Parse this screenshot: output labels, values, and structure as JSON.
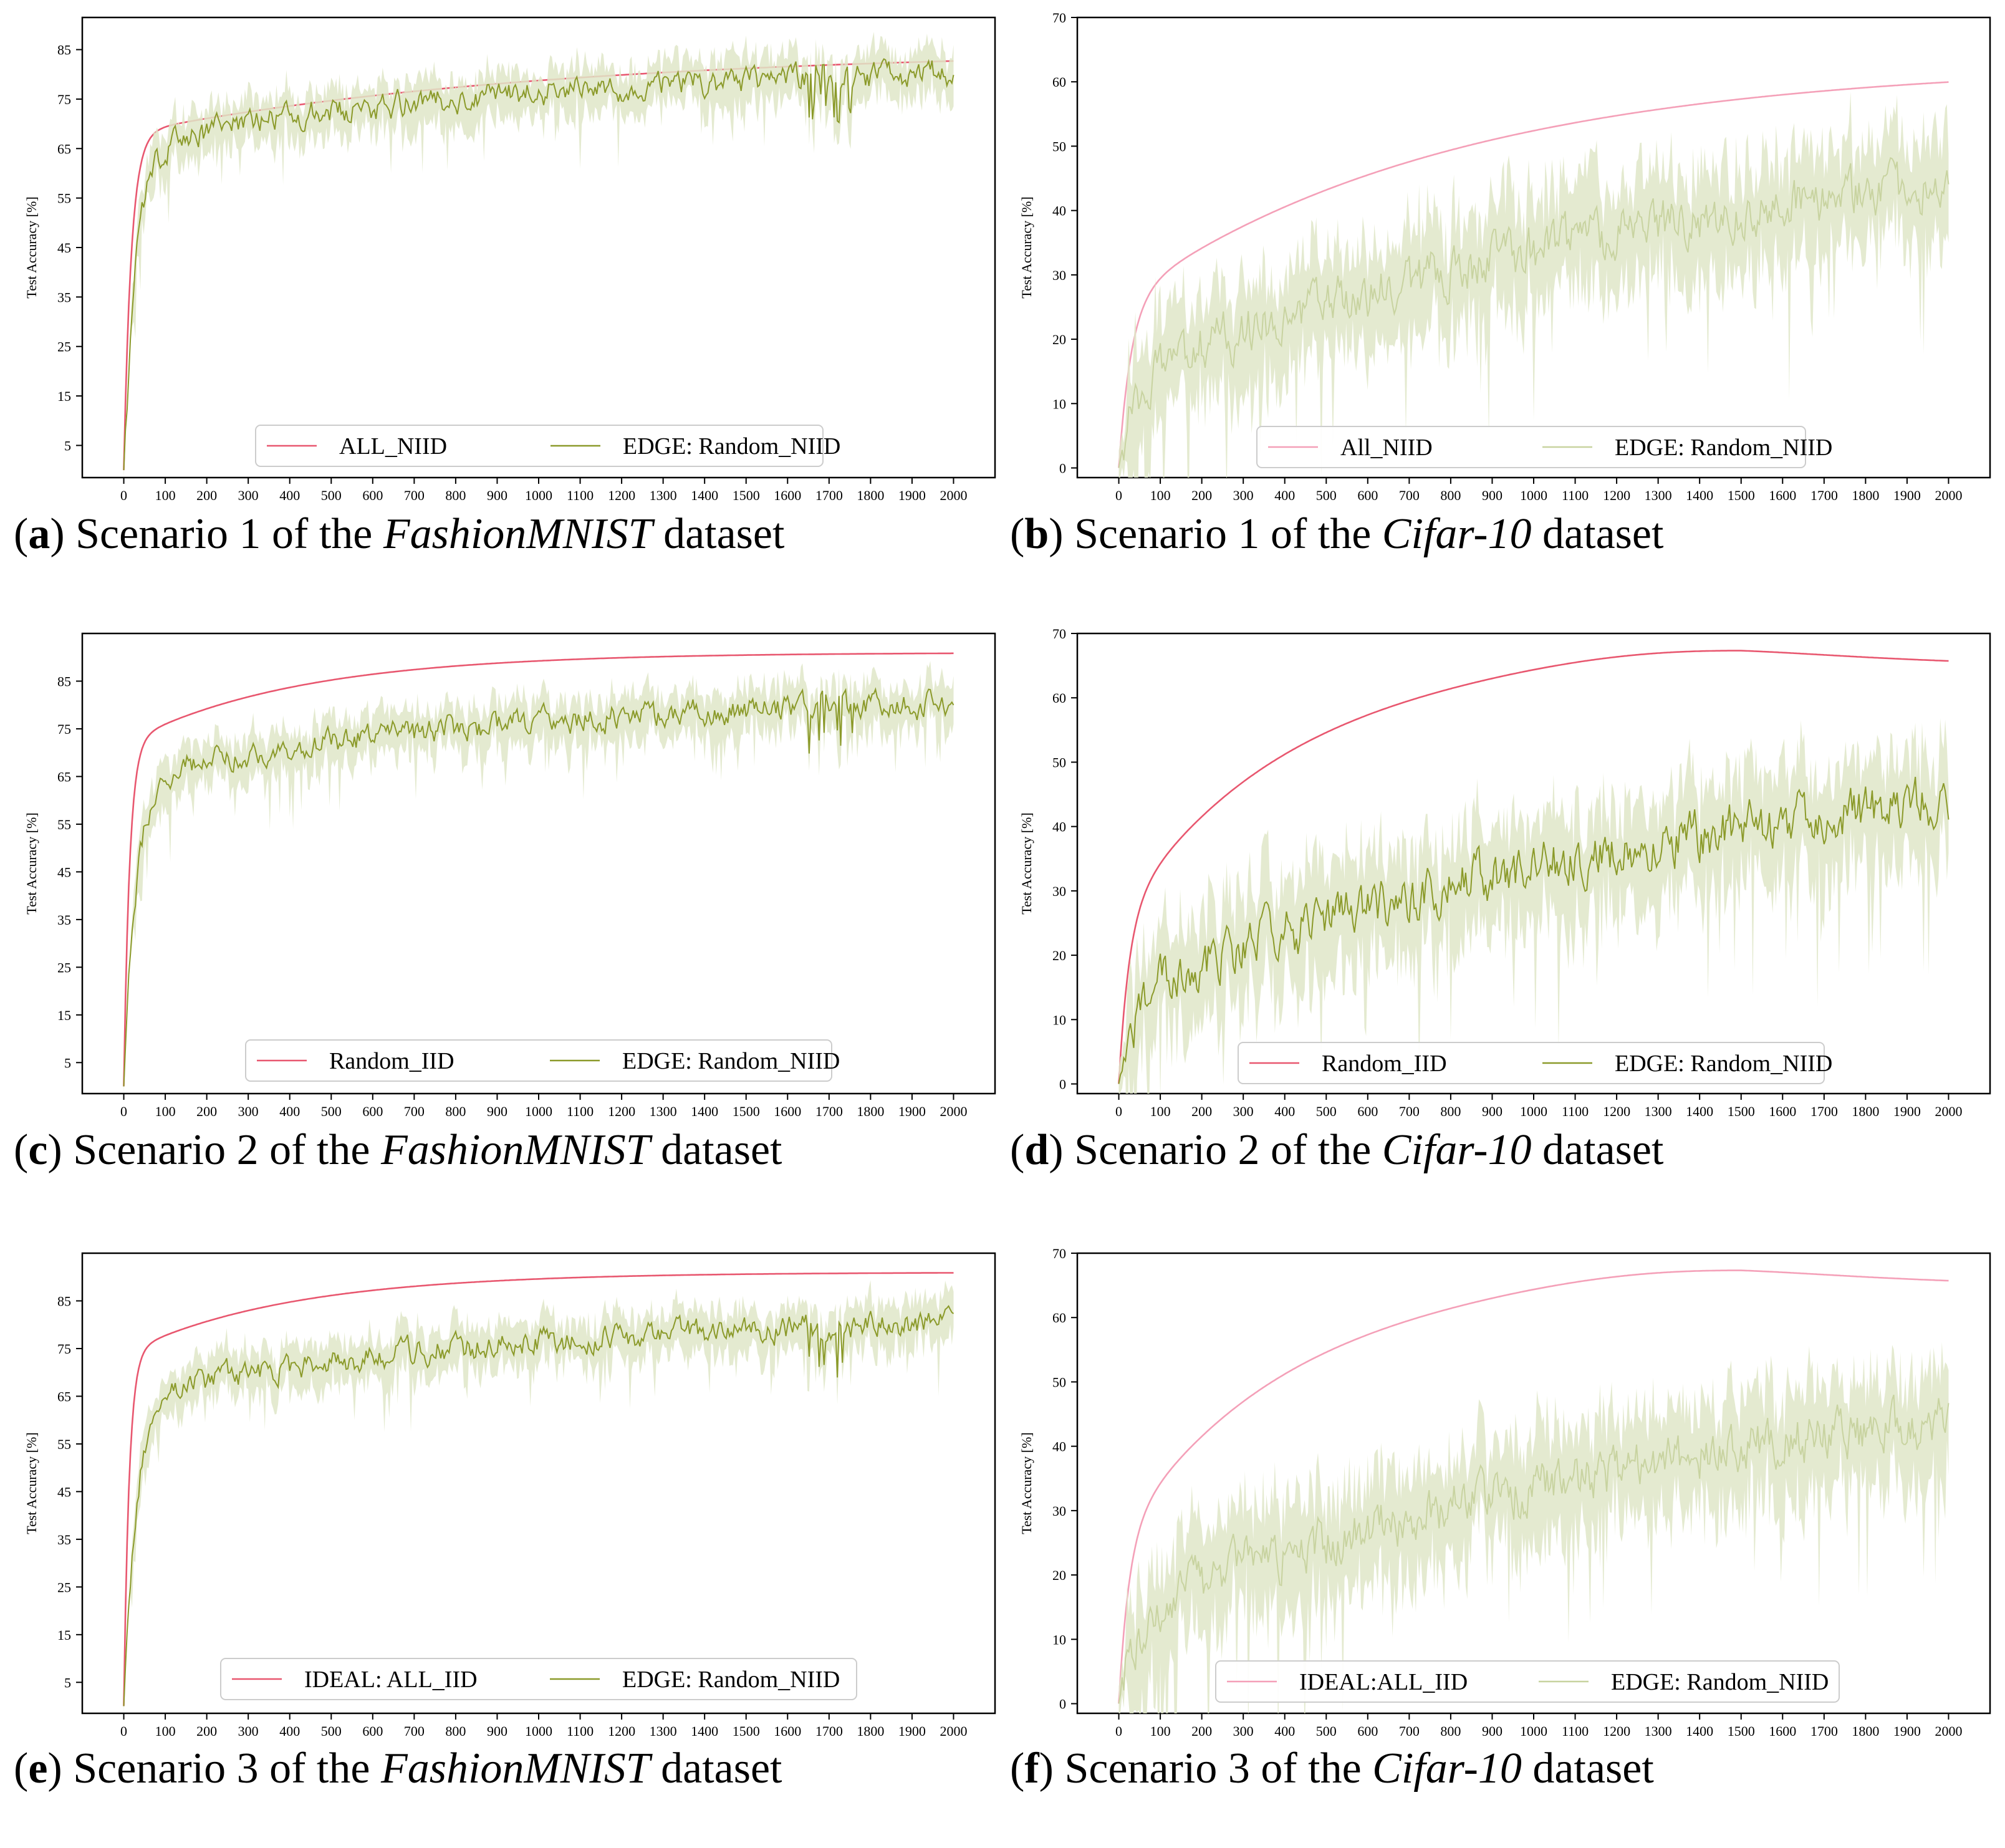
{
  "colors": {
    "pink": "#e8576f",
    "pink_light": "#f4a0b8",
    "olive": "#8b9a2a",
    "olive_band": "#dfe6c8"
  },
  "chart_data": [
    {
      "id": "a",
      "type": "line",
      "caption": {
        "letter": "a",
        "pre": " Scenario 1 of the ",
        "dataset": "FashionMNIST",
        "post": " dataset"
      },
      "ylabel": "Test Accuracy [%]",
      "xlim": [
        -100,
        2100
      ],
      "ylim": [
        -1.5,
        91.5
      ],
      "xticks": [
        0,
        100,
        200,
        300,
        400,
        500,
        600,
        700,
        800,
        900,
        1000,
        1100,
        1200,
        1300,
        1400,
        1500,
        1600,
        1700,
        1800,
        1900,
        2000
      ],
      "yticks": [
        5,
        15,
        25,
        35,
        45,
        55,
        65,
        75,
        85
      ],
      "ytick_labels": [
        "5",
        "15",
        "25",
        "35",
        "45",
        "55",
        "65",
        "75",
        "85"
      ],
      "series": [
        {
          "name": "ALL_NIID",
          "kind": "smooth",
          "color": "#e8576f",
          "start": 0,
          "end": 85,
          "fast": 68,
          "k1": 18,
          "k2": 1000,
          "hump": 0
        },
        {
          "name": "EDGE: Random_NIID",
          "kind": "noisy",
          "color": "#8b9a2a",
          "start": 0,
          "end": 82,
          "fast": 65,
          "k1": 30,
          "k2": 900,
          "noise": 2.2,
          "band": 5,
          "dips": true
        }
      ]
    },
    {
      "id": "b",
      "type": "line",
      "caption": {
        "letter": "b",
        "pre": " Scenario 1 of the ",
        "dataset": "Cifar-10",
        "post": " dataset"
      },
      "ylabel": "Test Accuracy [%]",
      "xlim": [
        -100,
        2100
      ],
      "ylim": [
        -1.5,
        70
      ],
      "xticks": [
        0,
        100,
        200,
        300,
        400,
        500,
        600,
        700,
        800,
        900,
        1000,
        1100,
        1200,
        1300,
        1400,
        1500,
        1600,
        1700,
        1800,
        1900,
        2000
      ],
      "yticks": [
        0,
        10,
        20,
        30,
        40,
        50,
        60,
        70
      ],
      "ytick_labels": [
        "0",
        "10",
        "20",
        "30",
        "40",
        "50",
        "60",
        "70"
      ],
      "series": [
        {
          "name": "All_NIID",
          "kind": "smooth",
          "color": "#f4a0b8",
          "start": 0,
          "end": 63,
          "fast": 26,
          "k1": 30,
          "k2": 800,
          "hump": 0
        },
        {
          "name": "EDGE: Random_NIID",
          "kind": "noisy",
          "color": "#c8d3a0",
          "start": 0,
          "end": 56,
          "fast": 14,
          "k1": 40,
          "k2": 1600,
          "noise": 3.2,
          "band": 9,
          "dips": false
        }
      ]
    },
    {
      "id": "c",
      "type": "line",
      "caption": {
        "letter": "c",
        "pre": " Scenario 2 of the ",
        "dataset": "FashionMNIST",
        "post": " dataset"
      },
      "ylabel": "Test Accuracy [%]",
      "xlim": [
        -100,
        2100
      ],
      "ylim": [
        -1.5,
        95
      ],
      "xticks": [
        0,
        100,
        200,
        300,
        400,
        500,
        600,
        700,
        800,
        900,
        1000,
        1100,
        1200,
        1300,
        1400,
        1500,
        1600,
        1700,
        1800,
        1900,
        2000
      ],
      "yticks": [
        5,
        15,
        25,
        35,
        45,
        55,
        65,
        75,
        85
      ],
      "ytick_labels": [
        "5",
        "15",
        "25",
        "35",
        "45",
        "55",
        "65",
        "75",
        "85"
      ],
      "series": [
        {
          "name": "Random_IID",
          "kind": "smooth",
          "color": "#e8576f",
          "start": 0,
          "end": 91,
          "fast": 72,
          "k1": 14,
          "k2": 420,
          "hump": 0
        },
        {
          "name": "EDGE: Random_NIID",
          "kind": "noisy",
          "color": "#8b9a2a",
          "start": 0,
          "end": 82,
          "fast": 65,
          "k1": 30,
          "k2": 900,
          "noise": 2.2,
          "band": 5,
          "dips": true
        }
      ]
    },
    {
      "id": "d",
      "type": "line",
      "caption": {
        "letter": "d",
        "pre": " Scenario 2 of the ",
        "dataset": "Cifar-10",
        "post": " dataset"
      },
      "ylabel": "Test Accuracy [%]",
      "xlim": [
        -100,
        2100
      ],
      "ylim": [
        -1.5,
        70
      ],
      "xticks": [
        0,
        100,
        200,
        300,
        400,
        500,
        600,
        700,
        800,
        900,
        1000,
        1100,
        1200,
        1300,
        1400,
        1500,
        1600,
        1700,
        1800,
        1900,
        2000
      ],
      "yticks": [
        0,
        10,
        20,
        30,
        40,
        50,
        60,
        70
      ],
      "ytick_labels": [
        "0",
        "10",
        "20",
        "30",
        "40",
        "50",
        "60",
        "70"
      ],
      "series": [
        {
          "name": "Random_IID",
          "kind": "smooth",
          "color": "#e8576f",
          "start": 0,
          "end": 67,
          "fast": 26,
          "k1": 25,
          "k2": 420,
          "hump": 1.8
        },
        {
          "name": "EDGE: Random_NIID",
          "kind": "noisy",
          "color": "#8b9a2a",
          "start": 0,
          "end": 56,
          "fast": 14,
          "k1": 40,
          "k2": 1600,
          "noise": 3.2,
          "band": 9,
          "dips": false
        }
      ]
    },
    {
      "id": "e",
      "type": "line",
      "caption": {
        "letter": "e",
        "pre": " Scenario 3 of the ",
        "dataset": "FashionMNIST",
        "post": " dataset"
      },
      "ylabel": "Test Accuracy [%]",
      "xlim": [
        -100,
        2100
      ],
      "ylim": [
        -1.5,
        95
      ],
      "xticks": [
        0,
        100,
        200,
        300,
        400,
        500,
        600,
        700,
        800,
        900,
        1000,
        1100,
        1200,
        1300,
        1400,
        1500,
        1600,
        1700,
        1800,
        1900,
        2000
      ],
      "yticks": [
        5,
        15,
        25,
        35,
        45,
        55,
        65,
        75,
        85
      ],
      "ytick_labels": [
        "5",
        "15",
        "25",
        "35",
        "45",
        "55",
        "65",
        "75",
        "85"
      ],
      "series": [
        {
          "name": "IDEAL: ALL_IID",
          "kind": "smooth",
          "color": "#e8576f",
          "start": 0,
          "end": 91,
          "fast": 74,
          "k1": 13,
          "k2": 400,
          "hump": 0
        },
        {
          "name": "EDGE: Random_NIID",
          "kind": "noisy",
          "color": "#8b9a2a",
          "start": 0,
          "end": 82,
          "fast": 65,
          "k1": 30,
          "k2": 900,
          "noise": 2.2,
          "band": 5,
          "dips": true
        }
      ]
    },
    {
      "id": "f",
      "type": "line",
      "caption": {
        "letter": "f",
        "pre": " Scenario 3 of the ",
        "dataset": "Cifar-10",
        "post": " dataset"
      },
      "ylabel": "Test Accuracy [%]",
      "xlim": [
        -100,
        2100
      ],
      "ylim": [
        -1.5,
        70
      ],
      "xticks": [
        0,
        100,
        200,
        300,
        400,
        500,
        600,
        700,
        800,
        900,
        1000,
        1100,
        1200,
        1300,
        1400,
        1500,
        1600,
        1700,
        1800,
        1900,
        2000
      ],
      "yticks": [
        0,
        10,
        20,
        30,
        40,
        50,
        60,
        70
      ],
      "ytick_labels": [
        "0",
        "10",
        "20",
        "30",
        "40",
        "50",
        "60",
        "70"
      ],
      "series": [
        {
          "name": "IDEAL:ALL_IID",
          "kind": "smooth",
          "color": "#f4a0b8",
          "start": 0,
          "end": 67,
          "fast": 26,
          "k1": 25,
          "k2": 420,
          "hump": 1.8
        },
        {
          "name": "EDGE: Random_NIID",
          "kind": "noisy",
          "color": "#c8d3a0",
          "start": 0,
          "end": 56,
          "fast": 14,
          "k1": 40,
          "k2": 1600,
          "noise": 3.2,
          "band": 9,
          "dips": false
        }
      ]
    }
  ]
}
